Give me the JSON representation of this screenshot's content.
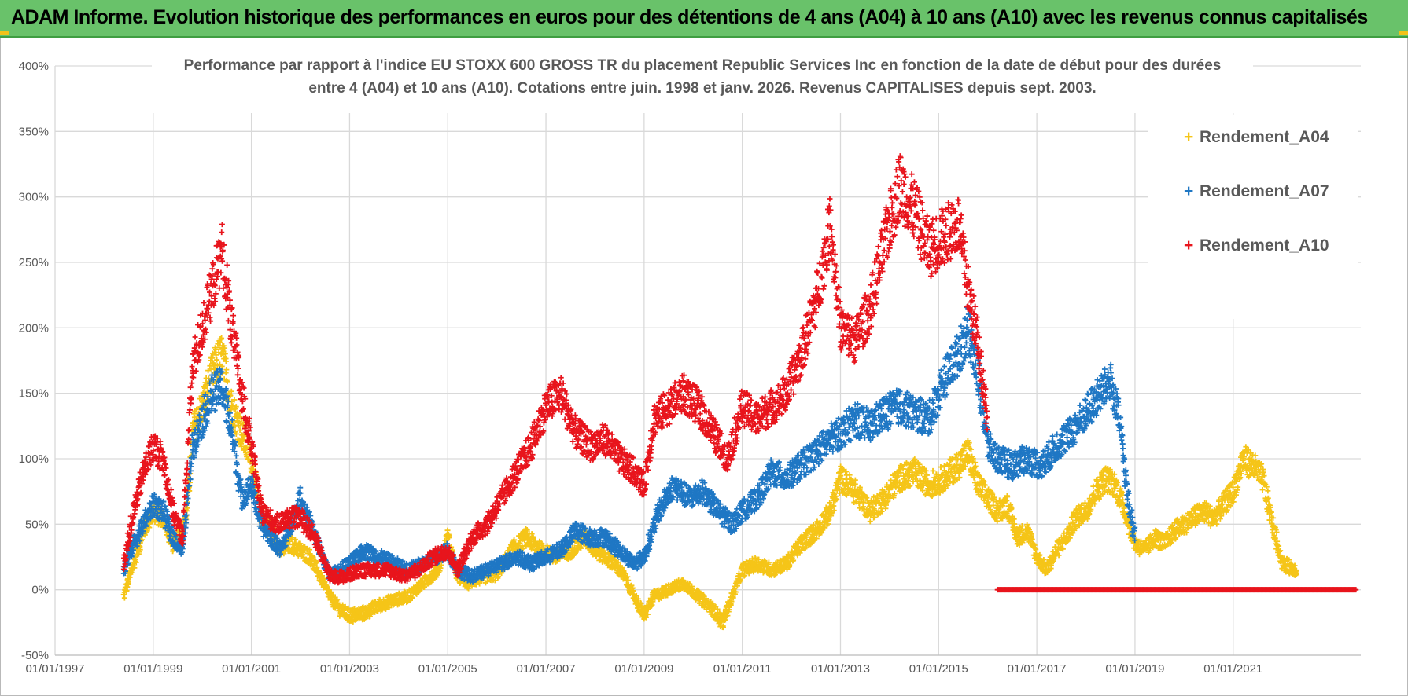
{
  "banner": {
    "title": "ADAM Informe. Evolution historique des performances en euros pour des détentions de 4 ans (A04) à 10 ans (A10) avec les revenus connus capitalisés"
  },
  "colors": {
    "banner_bg": "#69c26a",
    "a04": "#f5c518",
    "a07": "#1f77c4",
    "a10": "#e8141c",
    "grid": "#d9d9d9",
    "axis_text": "#595959"
  },
  "chart_data": {
    "type": "scatter",
    "marker": "plus",
    "title_line1": "Performance par rapport à l'indice EU STOXX 600 GROSS TR  du placement Republic Services  Inc en fonction de la date de début pour des durées",
    "title_line2": "entre 4 (A04) et 10 ans (A10).  Cotations entre juin. 1998 et janv. 2026. Revenus CAPITALISES depuis sept. 2003.",
    "xlabel": "",
    "ylabel": "",
    "x_ticks": [
      "01/01/1997",
      "01/01/1999",
      "01/01/2001",
      "01/01/2003",
      "01/01/2005",
      "01/01/2007",
      "01/01/2009",
      "01/01/2011",
      "01/01/2013",
      "01/01/2015",
      "01/01/2017",
      "01/01/2019",
      "01/01/2021"
    ],
    "x_range": [
      1997.0,
      2023.6
    ],
    "y_ticks": [
      "400%",
      "350%",
      "300%",
      "250%",
      "200%",
      "150%",
      "100%",
      "50%",
      "0%",
      "-50%"
    ],
    "y_range": [
      -50,
      400
    ],
    "grid": true,
    "legend_position": "top-right",
    "legend": [
      "Rendement_A04",
      "Rendement_A07",
      "Rendement_A10"
    ],
    "series": [
      {
        "name": "Rendement_A04",
        "key": "a04",
        "start": 1998.4,
        "end": 2022.3,
        "anchors": [
          [
            1998.4,
            -5
          ],
          [
            1998.6,
            20
          ],
          [
            1998.8,
            45
          ],
          [
            1999.0,
            60
          ],
          [
            1999.2,
            55
          ],
          [
            1999.4,
            35
          ],
          [
            1999.6,
            45
          ],
          [
            1999.7,
            65
          ],
          [
            1999.8,
            120
          ],
          [
            2000.0,
            140
          ],
          [
            2000.2,
            165
          ],
          [
            2000.4,
            180
          ],
          [
            2000.6,
            140
          ],
          [
            2000.8,
            120
          ],
          [
            2001.0,
            100
          ],
          [
            2001.2,
            55
          ],
          [
            2001.4,
            45
          ],
          [
            2001.6,
            30
          ],
          [
            2001.8,
            35
          ],
          [
            2002.0,
            30
          ],
          [
            2002.2,
            25
          ],
          [
            2002.4,
            10
          ],
          [
            2002.6,
            -5
          ],
          [
            2002.8,
            -15
          ],
          [
            2003.0,
            -20
          ],
          [
            2003.3,
            -18
          ],
          [
            2003.6,
            -12
          ],
          [
            2003.9,
            -8
          ],
          [
            2004.2,
            -5
          ],
          [
            2004.5,
            5
          ],
          [
            2004.8,
            15
          ],
          [
            2005.0,
            40
          ],
          [
            2005.2,
            10
          ],
          [
            2005.4,
            5
          ],
          [
            2005.6,
            8
          ],
          [
            2005.8,
            10
          ],
          [
            2006.0,
            12
          ],
          [
            2006.3,
            30
          ],
          [
            2006.6,
            40
          ],
          [
            2006.9,
            30
          ],
          [
            2007.2,
            25
          ],
          [
            2007.5,
            30
          ],
          [
            2007.8,
            40
          ],
          [
            2008.0,
            30
          ],
          [
            2008.2,
            25
          ],
          [
            2008.4,
            20
          ],
          [
            2008.6,
            10
          ],
          [
            2008.8,
            -5
          ],
          [
            2009.0,
            -20
          ],
          [
            2009.2,
            -5
          ],
          [
            2009.5,
            0
          ],
          [
            2009.8,
            5
          ],
          [
            2010.1,
            -5
          ],
          [
            2010.4,
            -15
          ],
          [
            2010.6,
            -25
          ],
          [
            2010.8,
            -5
          ],
          [
            2011.0,
            15
          ],
          [
            2011.3,
            20
          ],
          [
            2011.6,
            15
          ],
          [
            2011.9,
            20
          ],
          [
            2012.2,
            35
          ],
          [
            2012.5,
            45
          ],
          [
            2012.8,
            60
          ],
          [
            2013.0,
            85
          ],
          [
            2013.3,
            75
          ],
          [
            2013.6,
            60
          ],
          [
            2013.9,
            70
          ],
          [
            2014.2,
            85
          ],
          [
            2014.5,
            90
          ],
          [
            2014.8,
            80
          ],
          [
            2015.1,
            85
          ],
          [
            2015.4,
            95
          ],
          [
            2015.6,
            105
          ],
          [
            2015.8,
            80
          ],
          [
            2016.0,
            70
          ],
          [
            2016.2,
            60
          ],
          [
            2016.4,
            65
          ],
          [
            2016.6,
            40
          ],
          [
            2016.8,
            45
          ],
          [
            2017.0,
            25
          ],
          [
            2017.2,
            15
          ],
          [
            2017.4,
            30
          ],
          [
            2017.6,
            40
          ],
          [
            2017.8,
            55
          ],
          [
            2018.0,
            60
          ],
          [
            2018.2,
            75
          ],
          [
            2018.4,
            85
          ],
          [
            2018.6,
            80
          ],
          [
            2018.8,
            60
          ],
          [
            2019.0,
            35
          ],
          [
            2019.2,
            30
          ],
          [
            2019.4,
            40
          ],
          [
            2019.6,
            35
          ],
          [
            2019.8,
            45
          ],
          [
            2020.0,
            50
          ],
          [
            2020.2,
            55
          ],
          [
            2020.4,
            60
          ],
          [
            2020.6,
            55
          ],
          [
            2020.8,
            65
          ],
          [
            2021.0,
            75
          ],
          [
            2021.2,
            100
          ],
          [
            2021.4,
            95
          ],
          [
            2021.6,
            85
          ],
          [
            2021.8,
            50
          ],
          [
            2022.0,
            20
          ],
          [
            2022.3,
            15
          ]
        ]
      },
      {
        "name": "Rendement_A07",
        "key": "a07",
        "start": 1998.4,
        "end": 2019.0,
        "anchors": [
          [
            1998.4,
            15
          ],
          [
            1998.6,
            35
          ],
          [
            1998.8,
            50
          ],
          [
            1999.0,
            65
          ],
          [
            1999.2,
            60
          ],
          [
            1999.4,
            40
          ],
          [
            1999.6,
            30
          ],
          [
            1999.8,
            110
          ],
          [
            2000.0,
            130
          ],
          [
            2000.2,
            150
          ],
          [
            2000.4,
            155
          ],
          [
            2000.6,
            120
          ],
          [
            2000.8,
            70
          ],
          [
            2001.0,
            80
          ],
          [
            2001.2,
            50
          ],
          [
            2001.4,
            40
          ],
          [
            2001.6,
            30
          ],
          [
            2001.8,
            50
          ],
          [
            2002.0,
            70
          ],
          [
            2002.2,
            50
          ],
          [
            2002.4,
            30
          ],
          [
            2002.6,
            10
          ],
          [
            2002.8,
            15
          ],
          [
            2003.0,
            20
          ],
          [
            2003.3,
            30
          ],
          [
            2003.6,
            25
          ],
          [
            2003.9,
            20
          ],
          [
            2004.2,
            15
          ],
          [
            2004.5,
            20
          ],
          [
            2004.8,
            25
          ],
          [
            2005.0,
            30
          ],
          [
            2005.2,
            15
          ],
          [
            2005.5,
            10
          ],
          [
            2005.8,
            15
          ],
          [
            2006.1,
            20
          ],
          [
            2006.4,
            25
          ],
          [
            2006.7,
            20
          ],
          [
            2007.0,
            25
          ],
          [
            2007.3,
            30
          ],
          [
            2007.6,
            45
          ],
          [
            2007.9,
            40
          ],
          [
            2008.2,
            40
          ],
          [
            2008.5,
            30
          ],
          [
            2008.8,
            20
          ],
          [
            2009.0,
            25
          ],
          [
            2009.3,
            60
          ],
          [
            2009.6,
            80
          ],
          [
            2009.9,
            70
          ],
          [
            2010.2,
            75
          ],
          [
            2010.5,
            60
          ],
          [
            2010.8,
            50
          ],
          [
            2011.0,
            60
          ],
          [
            2011.3,
            70
          ],
          [
            2011.6,
            90
          ],
          [
            2011.9,
            85
          ],
          [
            2012.2,
            95
          ],
          [
            2012.5,
            105
          ],
          [
            2012.8,
            115
          ],
          [
            2013.0,
            120
          ],
          [
            2013.3,
            130
          ],
          [
            2013.6,
            125
          ],
          [
            2013.9,
            135
          ],
          [
            2014.2,
            140
          ],
          [
            2014.5,
            135
          ],
          [
            2014.8,
            130
          ],
          [
            2015.1,
            160
          ],
          [
            2015.4,
            180
          ],
          [
            2015.6,
            200
          ],
          [
            2015.8,
            165
          ],
          [
            2016.0,
            110
          ],
          [
            2016.2,
            100
          ],
          [
            2016.5,
            95
          ],
          [
            2016.8,
            100
          ],
          [
            2017.1,
            95
          ],
          [
            2017.4,
            110
          ],
          [
            2017.7,
            120
          ],
          [
            2018.0,
            135
          ],
          [
            2018.3,
            150
          ],
          [
            2018.5,
            160
          ],
          [
            2018.7,
            125
          ],
          [
            2018.85,
            70
          ],
          [
            2019.0,
            40
          ]
        ]
      },
      {
        "name": "Rendement_A10",
        "key": "a10",
        "start": 1998.4,
        "end": 2016.0,
        "anchors": [
          [
            1998.4,
            20
          ],
          [
            1998.6,
            60
          ],
          [
            1998.8,
            90
          ],
          [
            1999.0,
            110
          ],
          [
            1999.2,
            100
          ],
          [
            1999.4,
            60
          ],
          [
            1999.6,
            40
          ],
          [
            1999.8,
            170
          ],
          [
            2000.0,
            200
          ],
          [
            2000.2,
            230
          ],
          [
            2000.4,
            260
          ],
          [
            2000.6,
            200
          ],
          [
            2000.8,
            150
          ],
          [
            2001.0,
            110
          ],
          [
            2001.2,
            60
          ],
          [
            2001.5,
            50
          ],
          [
            2001.8,
            55
          ],
          [
            2002.0,
            55
          ],
          [
            2002.3,
            40
          ],
          [
            2002.6,
            10
          ],
          [
            2002.9,
            10
          ],
          [
            2003.2,
            15
          ],
          [
            2003.5,
            15
          ],
          [
            2003.8,
            15
          ],
          [
            2004.1,
            10
          ],
          [
            2004.4,
            15
          ],
          [
            2004.7,
            25
          ],
          [
            2005.0,
            30
          ],
          [
            2005.2,
            15
          ],
          [
            2005.5,
            40
          ],
          [
            2005.8,
            50
          ],
          [
            2006.1,
            70
          ],
          [
            2006.4,
            90
          ],
          [
            2006.7,
            110
          ],
          [
            2007.0,
            140
          ],
          [
            2007.3,
            150
          ],
          [
            2007.6,
            120
          ],
          [
            2007.9,
            110
          ],
          [
            2008.2,
            115
          ],
          [
            2008.5,
            100
          ],
          [
            2008.8,
            90
          ],
          [
            2009.0,
            80
          ],
          [
            2009.2,
            130
          ],
          [
            2009.5,
            140
          ],
          [
            2009.8,
            150
          ],
          [
            2010.1,
            140
          ],
          [
            2010.4,
            120
          ],
          [
            2010.7,
            100
          ],
          [
            2011.0,
            140
          ],
          [
            2011.3,
            130
          ],
          [
            2011.6,
            140
          ],
          [
            2011.9,
            150
          ],
          [
            2012.2,
            180
          ],
          [
            2012.5,
            220
          ],
          [
            2012.8,
            280
          ],
          [
            2013.0,
            200
          ],
          [
            2013.3,
            190
          ],
          [
            2013.6,
            215
          ],
          [
            2013.9,
            265
          ],
          [
            2014.2,
            310
          ],
          [
            2014.5,
            290
          ],
          [
            2014.8,
            260
          ],
          [
            2015.1,
            270
          ],
          [
            2015.4,
            280
          ],
          [
            2015.6,
            230
          ],
          [
            2015.8,
            190
          ],
          [
            2016.0,
            130
          ]
        ]
      }
    ],
    "zero_series": {
      "key": "a10",
      "start": 2016.2,
      "end": 2023.5,
      "value": 0
    }
  }
}
